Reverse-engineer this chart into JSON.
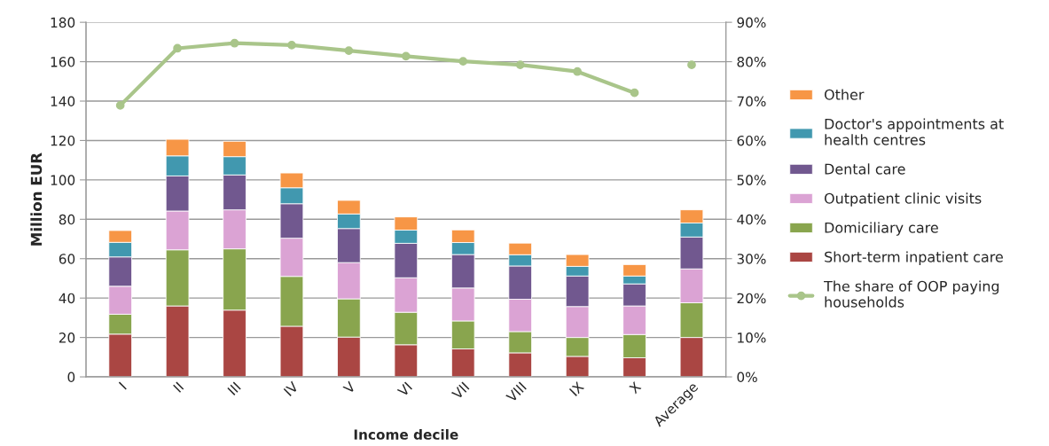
{
  "chart_data": {
    "type": "bar",
    "stacked": true,
    "categories": [
      "I",
      "II",
      "III",
      "IV",
      "V",
      "VI",
      "VII",
      "VIII",
      "IX",
      "X",
      "Average"
    ],
    "xlabel": "Income decile",
    "ylabel": "Million EUR",
    "ylim": [
      0,
      180
    ],
    "yticks": [
      0,
      20,
      40,
      60,
      80,
      100,
      120,
      140,
      160,
      180
    ],
    "y2lim": [
      0,
      90
    ],
    "y2ticks": [
      {
        "value": 0,
        "label": "0%"
      },
      {
        "value": 10,
        "label": "10%"
      },
      {
        "value": 20,
        "label": "20%"
      },
      {
        "value": 30,
        "label": "30%"
      },
      {
        "value": 40,
        "label": "40%"
      },
      {
        "value": 50,
        "label": "50%"
      },
      {
        "value": 60,
        "label": "60%"
      },
      {
        "value": 70,
        "label": "70%"
      },
      {
        "value": 80,
        "label": "80%"
      },
      {
        "value": 90,
        "label": "90%"
      }
    ],
    "grid": "y",
    "legend": "right",
    "series": [
      {
        "name": "Short-term inpatient care",
        "color": "#aa4643",
        "values": [
          21.7,
          36.0,
          33.9,
          25.7,
          20.2,
          16.3,
          14.2,
          12.2,
          10.4,
          9.7,
          20.0
        ]
      },
      {
        "name": "Domiciliary care",
        "color": "#89a54e",
        "values": [
          10.1,
          28.5,
          31.1,
          25.3,
          19.4,
          16.5,
          14.2,
          10.8,
          9.6,
          11.8,
          17.6
        ]
      },
      {
        "name": "Outpatient clinic visits",
        "color": "#dba3d4",
        "values": [
          14.2,
          19.7,
          19.8,
          19.4,
          18.4,
          17.5,
          16.7,
          16.4,
          15.7,
          14.5,
          17.2
        ]
      },
      {
        "name": "Dental care",
        "color": "#71588f",
        "values": [
          14.9,
          17.8,
          17.7,
          17.5,
          17.3,
          17.5,
          17.0,
          16.9,
          15.5,
          11.2,
          16.2
        ]
      },
      {
        "name": "Doctor's appointments at\nhealth centres",
        "color": "#4198af",
        "values": [
          7.4,
          10.2,
          9.3,
          8.1,
          7.4,
          6.7,
          6.1,
          5.7,
          4.9,
          4.0,
          7.1
        ]
      },
      {
        "name": "Other",
        "color": "#f79646",
        "values": [
          6.0,
          8.4,
          7.8,
          7.5,
          6.9,
          6.7,
          6.4,
          5.9,
          6.0,
          5.8,
          6.7
        ]
      },
      {
        "name": "The share of OOP paying\nhouseholds",
        "type": "line",
        "axis": "y2",
        "marker": "circle",
        "color": "#a9c58a",
        "values": [
          68.9,
          83.4,
          84.7,
          84.2,
          82.8,
          81.4,
          80.1,
          79.2,
          77.5,
          72.1,
          null
        ]
      },
      {
        "type": "scatter",
        "axis": "y2",
        "marker": "circle",
        "color": "#a9c58a",
        "values": [
          null,
          null,
          null,
          null,
          null,
          null,
          null,
          null,
          null,
          null,
          79.2
        ]
      }
    ]
  }
}
